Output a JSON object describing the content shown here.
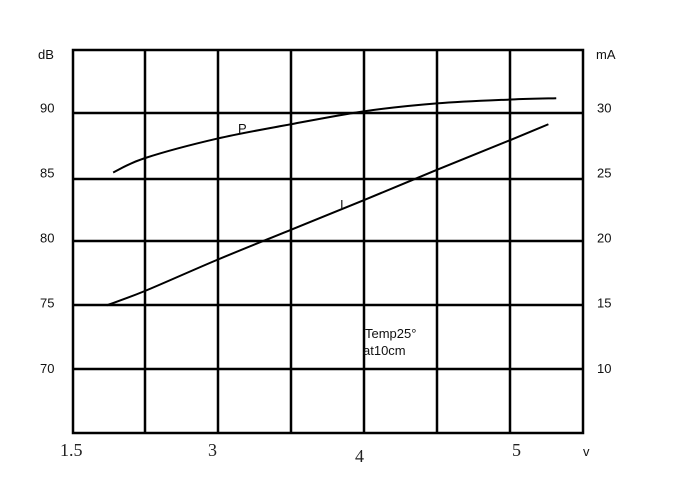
{
  "chart_data": {
    "type": "line",
    "title": "",
    "xlabel": "v",
    "ylabel_left": "dB",
    "ylabel_right": "mA",
    "x_ticks": [
      "1.5",
      "3",
      "4",
      "5"
    ],
    "y_left_ticks": [
      "90",
      "85",
      "80",
      "75",
      "70"
    ],
    "y_right_ticks": [
      "30",
      "25",
      "20",
      "15",
      "10"
    ],
    "y_left_range": [
      65,
      94.4
    ],
    "y_right_range": [
      5,
      34.4
    ],
    "grid": true,
    "annotation": [
      "Temp25°",
      "at10cm"
    ],
    "series": [
      {
        "name": "P",
        "axis": "left",
        "x": [
          1.93,
          2.27,
          3.03,
          3.53,
          4.03,
          4.49,
          4.96,
          5.25
        ],
        "y": [
          85.0,
          86.1,
          87.6,
          88.7,
          89.7,
          90.3,
          90.6,
          90.7
        ]
      },
      {
        "name": "I",
        "axis": "right",
        "x": [
          1.86,
          2.27,
          3.03,
          3.53,
          4.03,
          4.49,
          4.96,
          5.2
        ],
        "y": [
          14.8,
          15.9,
          18.3,
          20.6,
          22.9,
          25.2,
          27.5,
          28.7
        ]
      }
    ]
  }
}
